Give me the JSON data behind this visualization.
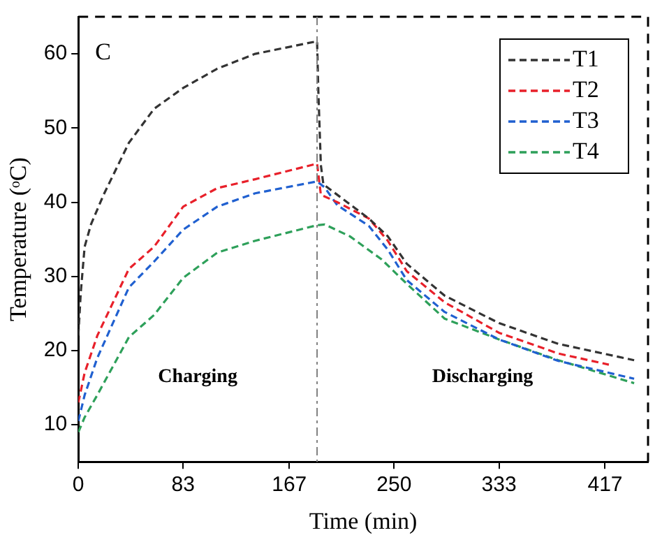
{
  "chart_data": {
    "type": "line",
    "xlabel": "Time (min)",
    "ylabel": "Temperature (ᵒC)",
    "xlim": [
      0,
      451
    ],
    "xticks": [
      0,
      83,
      167,
      250,
      333,
      417
    ],
    "ylim": [
      5,
      65
    ],
    "yticks": [
      10,
      20,
      30,
      40,
      50,
      60
    ],
    "grid": false,
    "legend": "top right",
    "line_style": "dashed",
    "marker": "none",
    "ref_lines": [
      {
        "axis": "x",
        "value": 189,
        "color": "#808080",
        "line_style": "dashdot"
      }
    ],
    "annotations": [
      "C",
      "Charging",
      "Discharging"
    ],
    "series": [
      {
        "name": "T1",
        "color": "#333333",
        "x": [
          0,
          2,
          5,
          10,
          20,
          40,
          60,
          83,
          110,
          140,
          189,
          190,
          192,
          194,
          205,
          230,
          245,
          260,
          290,
          333,
          380,
          440
        ],
        "values": [
          22,
          28,
          34,
          37,
          41,
          48,
          52.6,
          55.4,
          58,
          60,
          61.7,
          55,
          45,
          42.4,
          41,
          37.8,
          35.4,
          31.7,
          27.4,
          23.7,
          20.9,
          18.7
        ]
      },
      {
        "name": "T2",
        "color": "#e8202a",
        "x": [
          0,
          5,
          15,
          40,
          60,
          83,
          110,
          140,
          189,
          192,
          205,
          230,
          245,
          260,
          290,
          333,
          380,
          420
        ],
        "values": [
          13,
          17,
          22,
          31,
          34,
          39.4,
          41.9,
          43.1,
          45.2,
          41,
          40,
          37.8,
          34.8,
          30.7,
          26.5,
          22.4,
          19.6,
          18.1
        ]
      },
      {
        "name": "T3",
        "color": "#2060d0",
        "x": [
          0,
          5,
          15,
          40,
          60,
          83,
          110,
          140,
          189,
          195,
          205,
          230,
          245,
          260,
          290,
          333,
          380,
          440
        ],
        "values": [
          10.5,
          14,
          19,
          28.5,
          32,
          36.3,
          39.4,
          41.2,
          42.8,
          42,
          39.6,
          36.8,
          33.6,
          29.5,
          25.2,
          21.5,
          18.6,
          16.2
        ]
      },
      {
        "name": "T4",
        "color": "#2ea05a",
        "x": [
          0,
          5,
          15,
          40,
          60,
          83,
          110,
          140,
          189,
          195,
          215,
          240,
          260,
          290,
          333,
          380,
          440
        ],
        "values": [
          9,
          11,
          14,
          21.8,
          24.8,
          29.8,
          33.2,
          34.8,
          36.9,
          37,
          35.4,
          32.3,
          29,
          24.3,
          21.5,
          18.7,
          15.6
        ]
      }
    ]
  }
}
